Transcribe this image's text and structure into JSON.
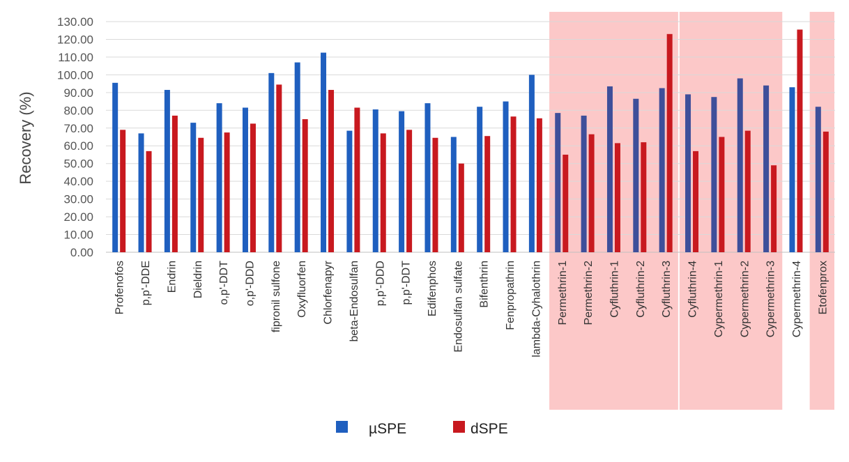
{
  "chart_data": {
    "type": "bar",
    "title": "",
    "xlabel": "",
    "ylabel": "Recovery (%)",
    "ylim": [
      0,
      130
    ],
    "ytick_step": 10,
    "ytick_decimals": 2,
    "grid": true,
    "legend_position": "bottom-center",
    "categories": [
      "Profenofos",
      "p,p'-DDE",
      "Endrin",
      "Dieldrin",
      "o,p'-DDT",
      "o,p'-DDD",
      "fipronil sulfone",
      "Oxyfluorfen",
      "Chlorfenapyr",
      "beta-Endosulfan",
      "p,p'-DDD",
      "p,p'-DDT",
      "Edifenphos",
      "Endosulfan sulfate",
      "Bifenthrin",
      "Fenpropathrin",
      "lambda-Cyhalothrin",
      "Permethrin-1",
      "Permethrin-2",
      "Cyfluthrin-1",
      "Cyfluthrin-2",
      "Cyfluthrin-3",
      "Cyfluthrin-4",
      "Cypermethrin-1",
      "Cypermethrin-2",
      "Cypermethrin-3",
      "Cypermethrin-4",
      "Etofenprox"
    ],
    "series": [
      {
        "name": "µSPE",
        "color": "#1f5fbf",
        "values": [
          95.5,
          67,
          91.5,
          73,
          84,
          81.5,
          101,
          107,
          112.5,
          68.5,
          80.5,
          79.5,
          84,
          65,
          82,
          85,
          100,
          78.5,
          77,
          93.5,
          86.5,
          92.5,
          89,
          87.5,
          98,
          94,
          93,
          82
        ]
      },
      {
        "name": "dSPE",
        "color": "#c8191f",
        "values": [
          69,
          57,
          77,
          64.5,
          67.5,
          72.5,
          94.5,
          75,
          91.5,
          81.5,
          67,
          69,
          64.5,
          50,
          65.5,
          76.5,
          75.5,
          55,
          66.5,
          61.5,
          62,
          123,
          57,
          65,
          68.5,
          49,
          125.5,
          68
        ]
      }
    ],
    "highlight_groups": [
      {
        "from": "Permethrin-1",
        "to": "Cyfluthrin-3"
      },
      {
        "from": "Cyfluthrin-4",
        "to": "Cypermethrin-3"
      },
      {
        "from": "Etofenprox",
        "to": "Etofenprox"
      }
    ],
    "highlight_color": "#fcc8c8",
    "highlight_text_color": "#6b3a3a",
    "axis_text_color": "#555555"
  }
}
